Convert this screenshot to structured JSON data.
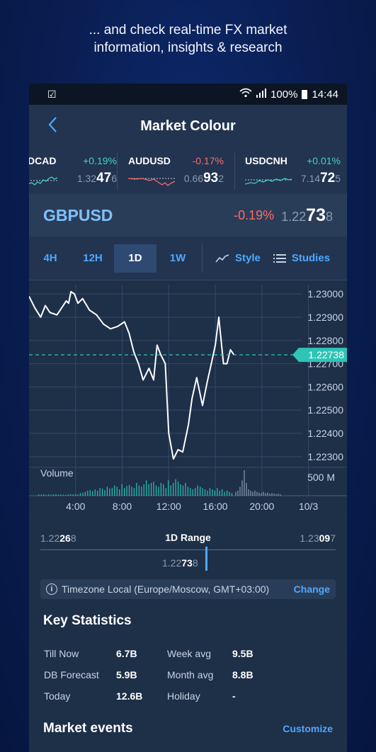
{
  "promo": {
    "line1": "... and check real-time FX market",
    "line2": "information, insights & research"
  },
  "status_bar": {
    "battery": "100%",
    "time": "14:44"
  },
  "header": {
    "title": "Market Colour"
  },
  "tickers": [
    {
      "symbol": "DCAD",
      "change": "+0.19%",
      "price_prefix": "1.32",
      "price_big": "47",
      "price_suffix": "6",
      "direction": "up"
    },
    {
      "symbol": "AUDUSD",
      "change": "-0.17%",
      "price_prefix": "0.66",
      "price_big": "93",
      "price_suffix": "2",
      "direction": "down"
    },
    {
      "symbol": "USDCNH",
      "change": "+0.01%",
      "price_prefix": "7.14",
      "price_big": "72",
      "price_suffix": "5",
      "direction": "up"
    }
  ],
  "instrument": {
    "name": "GBPUSD",
    "change": "-0.19%",
    "price_prefix": "1.22",
    "price_big": "73",
    "price_suffix": "8"
  },
  "toolbar": {
    "timeframes": [
      "4H",
      "12H",
      "1D",
      "1W"
    ],
    "active": "1D",
    "style_label": "Style",
    "studies_label": "Studies"
  },
  "chart_data": {
    "type": "line",
    "y_ticks": [
      "1.23000",
      "1.22900",
      "1.22800",
      "1.22700",
      "1.22600",
      "1.22500",
      "1.22400",
      "1.22300"
    ],
    "ylim": [
      1.2226,
      1.2304
    ],
    "x_ticks": [
      "4:00",
      "8:00",
      "12:00",
      "16:00",
      "20:00",
      "10/3"
    ],
    "current_value": 1.22738,
    "current_label": "1.22738",
    "volume_label": "Volume",
    "volume_axis_label": "500 M",
    "series": [
      {
        "values": [
          [
            0,
            1.2299
          ],
          [
            0.5,
            1.2294
          ],
          [
            1,
            1.229
          ],
          [
            1.4,
            1.2295
          ],
          [
            1.8,
            1.2292
          ],
          [
            2.4,
            1.2291
          ],
          [
            2.8,
            1.2294
          ],
          [
            3.2,
            1.2297
          ],
          [
            3.4,
            1.2296
          ],
          [
            3.6,
            1.2301
          ],
          [
            3.9,
            1.23
          ],
          [
            4.2,
            1.2296
          ],
          [
            4.6,
            1.2298
          ],
          [
            5.2,
            1.2293
          ],
          [
            5.8,
            1.2291
          ],
          [
            6.4,
            1.2287
          ],
          [
            7.0,
            1.2285
          ],
          [
            7.6,
            1.2286
          ],
          [
            8.2,
            1.2288
          ],
          [
            8.6,
            1.2283
          ],
          [
            9.0,
            1.2275
          ],
          [
            9.4,
            1.227
          ],
          [
            9.8,
            1.2263
          ],
          [
            10.3,
            1.2268
          ],
          [
            10.7,
            1.2263
          ],
          [
            11.0,
            1.2278
          ],
          [
            11.3,
            1.2274
          ],
          [
            11.7,
            1.227
          ],
          [
            12.0,
            1.224
          ],
          [
            12.4,
            1.2229
          ],
          [
            12.8,
            1.2233
          ],
          [
            13.2,
            1.2232
          ],
          [
            13.7,
            1.2244
          ],
          [
            14.0,
            1.2255
          ],
          [
            14.4,
            1.2264
          ],
          [
            14.9,
            1.2252
          ],
          [
            15.3,
            1.2262
          ],
          [
            15.7,
            1.2271
          ],
          [
            16.0,
            1.2278
          ],
          [
            16.3,
            1.229
          ],
          [
            16.7,
            1.227
          ],
          [
            17.0,
            1.227
          ],
          [
            17.3,
            1.2276
          ],
          [
            17.6,
            1.22738
          ]
        ]
      }
    ],
    "xlim": [
      0,
      26
    ],
    "x_tick_positions": [
      4,
      8,
      12,
      16,
      20,
      24
    ],
    "volumes": [
      0.05,
      0.04,
      0.06,
      0.03,
      0.05,
      0.04,
      0.05,
      0.06,
      0.04,
      0.05,
      0.04,
      0.03,
      0.05,
      0.06,
      0.05,
      0.06,
      0.05,
      0.1,
      0.12,
      0.15,
      0.2,
      0.22,
      0.18,
      0.25,
      0.2,
      0.3,
      0.28,
      0.22,
      0.35,
      0.28,
      0.3,
      0.4,
      0.35,
      0.25,
      0.45,
      0.3,
      0.38,
      0.42,
      0.35,
      0.3,
      0.5,
      0.4,
      0.35,
      0.45,
      0.6,
      0.45,
      0.5,
      0.55,
      0.4,
      0.35,
      0.5,
      0.45,
      0.3,
      0.6,
      0.4,
      0.5,
      0.65,
      0.55,
      0.45,
      0.4,
      0.5,
      0.35,
      0.3,
      0.25,
      0.3,
      0.4,
      0.35,
      0.3,
      0.25,
      0.2,
      0.3,
      0.25,
      0.2,
      0.3,
      0.2,
      0.25,
      0.15,
      0.2,
      0.15,
      0.1
    ],
    "volumes_gray": [
      0.15,
      0.2,
      0.35,
      0.6,
      1.0,
      0.5,
      0.25,
      0.2,
      0.15,
      0.2,
      0.15,
      0.12,
      0.1,
      0.15,
      0.1,
      0.12,
      0.08,
      0.1,
      0.08,
      0.06,
      0.08,
      0.05
    ],
    "grid": true
  },
  "range": {
    "low_prefix": "1.22",
    "low_big": "26",
    "low_suffix": "8",
    "title": "1D Range",
    "high_prefix": "1.23",
    "high_big": "09",
    "high_suffix": "7",
    "cur_prefix": "1.22",
    "cur_big": "73",
    "cur_suffix": "8",
    "position": 0.6
  },
  "timezone": {
    "text": "Timezone Local (Europe/Moscow, GMT+03:00)",
    "action": "Change"
  },
  "key_statistics": {
    "title": "Key Statistics",
    "rows": [
      {
        "l1": "Till Now",
        "v1": "6.7B",
        "l2": "Week avg",
        "v2": "9.5B"
      },
      {
        "l1": "DB Forecast",
        "v1": "5.9B",
        "l2": "Month avg",
        "v2": "8.8B"
      },
      {
        "l1": "Today",
        "v1": "12.6B",
        "l2": "Holiday",
        "v2": "-"
      }
    ]
  },
  "market_events": {
    "title": "Market events",
    "action": "Customize"
  },
  "colors": {
    "accent": "#4fa8ff",
    "positive": "#3fd3c4",
    "negative": "#ff6a6a",
    "price_line": "#ffffff",
    "current_line": "#2ec4b6"
  }
}
